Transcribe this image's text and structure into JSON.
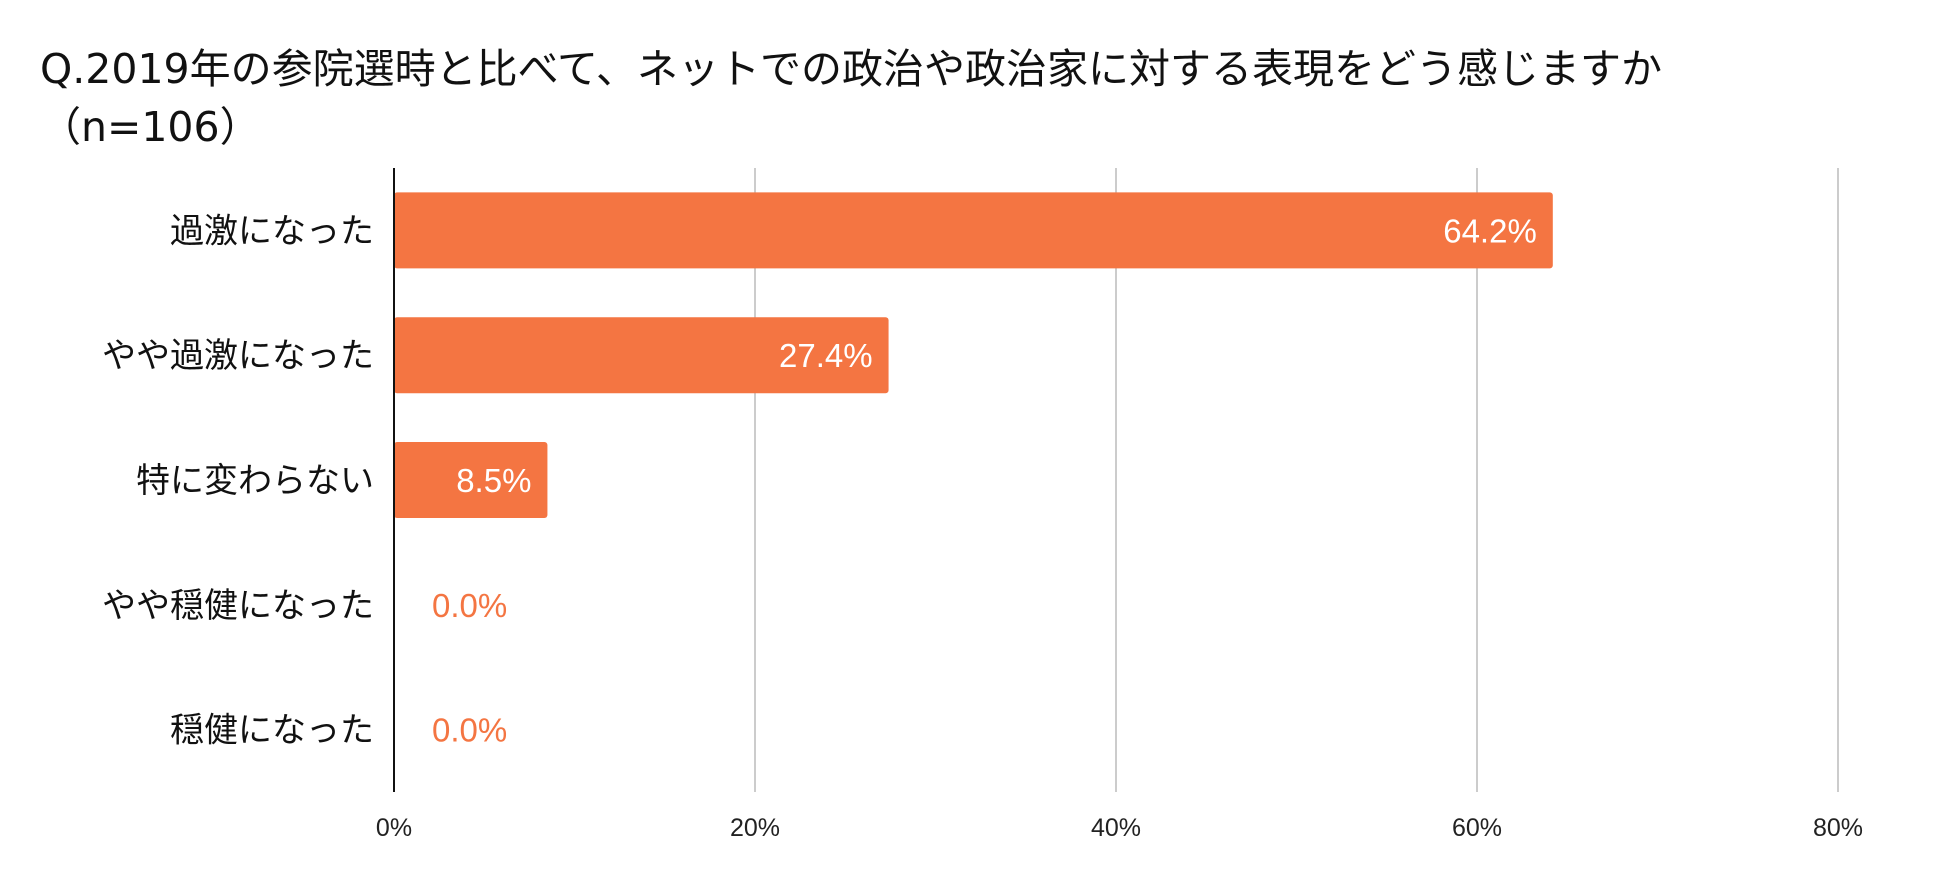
{
  "title": "Q.2019年の参院選時と比べて、ネットでの政治や政治家に対する表現をどう感じますか\n（n=106）",
  "colors": {
    "bar": "#f47542",
    "label_inside": "#ffffff",
    "label_outside": "#f47542",
    "grid": "#cccccc",
    "axis": "#111111"
  },
  "chart_data": {
    "type": "bar",
    "orientation": "horizontal",
    "title": "Q.2019年の参院選時と比べて、ネットでの政治や政治家に対する表現をどう感じますか\n（n=106）",
    "categories": [
      "過激になった",
      "やや過激になった",
      "特に変わらない",
      "やや穏健になった",
      "穏健になった"
    ],
    "values": [
      64.2,
      27.4,
      8.5,
      0.0,
      0.0
    ],
    "data_labels": [
      "64.2%",
      "27.4%",
      "8.5%",
      "0.0%",
      "0.0%"
    ],
    "x_ticks": [
      0,
      20,
      40,
      60,
      80
    ],
    "x_tick_labels": [
      "0%",
      "20%",
      "40%",
      "60%",
      "80%"
    ],
    "xlim": [
      0,
      80
    ],
    "grid": true,
    "legend": "none",
    "xlabel": "",
    "ylabel": ""
  }
}
